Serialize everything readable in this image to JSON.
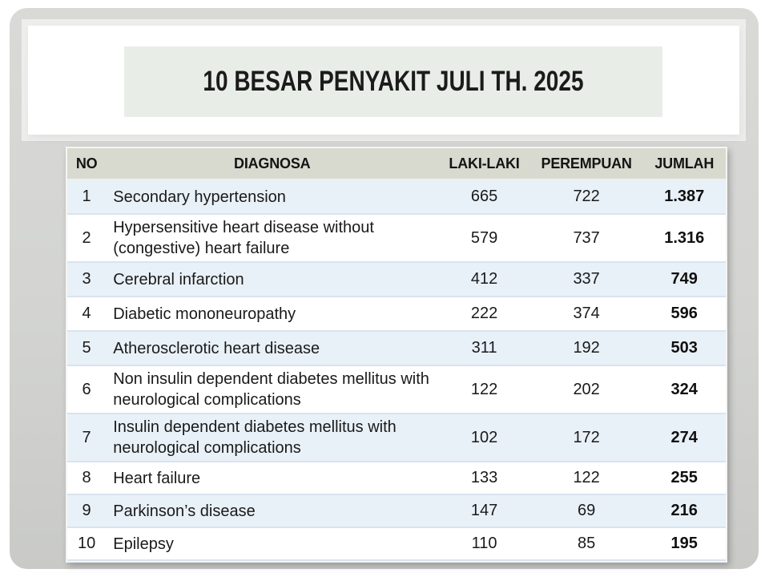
{
  "title": "10 BESAR PENYAKIT JULI TH. 2025",
  "table": {
    "columns": [
      "NO",
      "DIAGNOSA",
      "LAKI-LAKI",
      "PEREMPUAN",
      "JUMLAH"
    ],
    "rows": [
      {
        "no": "1",
        "diagnosa": "Secondary hypertension",
        "laki_laki": "665",
        "perempuan": "722",
        "jumlah": "1.387"
      },
      {
        "no": "2",
        "diagnosa": "Hypersensitive heart disease without (congestive) heart failure",
        "laki_laki": "579",
        "perempuan": "737",
        "jumlah": "1.316"
      },
      {
        "no": "3",
        "diagnosa": "Cerebral infarction",
        "laki_laki": "412",
        "perempuan": "337",
        "jumlah": "749"
      },
      {
        "no": "4",
        "diagnosa": "Diabetic mononeuropathy",
        "laki_laki": "222",
        "perempuan": "374",
        "jumlah": "596"
      },
      {
        "no": "5",
        "diagnosa": "Atherosclerotic heart disease",
        "laki_laki": "311",
        "perempuan": "192",
        "jumlah": "503"
      },
      {
        "no": "6",
        "diagnosa": "Non insulin dependent diabetes mellitus with neurological complications",
        "laki_laki": "122",
        "perempuan": "202",
        "jumlah": "324"
      },
      {
        "no": "7",
        "diagnosa": "Insulin dependent diabetes mellitus with neurological complications",
        "laki_laki": "102",
        "perempuan": "172",
        "jumlah": "274"
      },
      {
        "no": "8",
        "diagnosa": "Heart failure",
        "laki_laki": "133",
        "perempuan": "122",
        "jumlah": "255"
      },
      {
        "no": "9",
        "diagnosa": "Parkinson’s disease",
        "laki_laki": "147",
        "perempuan": "69",
        "jumlah": "216"
      },
      {
        "no": "10",
        "diagnosa": "Epilepsy",
        "laki_laki": "110",
        "perempuan": "85",
        "jumlah": "195"
      }
    ]
  },
  "colors": {
    "frame_gray": "#d3d4d2",
    "title_box_green": "#e8eee7",
    "header_bg": "#d8d9cf",
    "band_blue": "#e9f1f8",
    "row_border": "#d8e4ef",
    "text": "#1a1a1a"
  }
}
